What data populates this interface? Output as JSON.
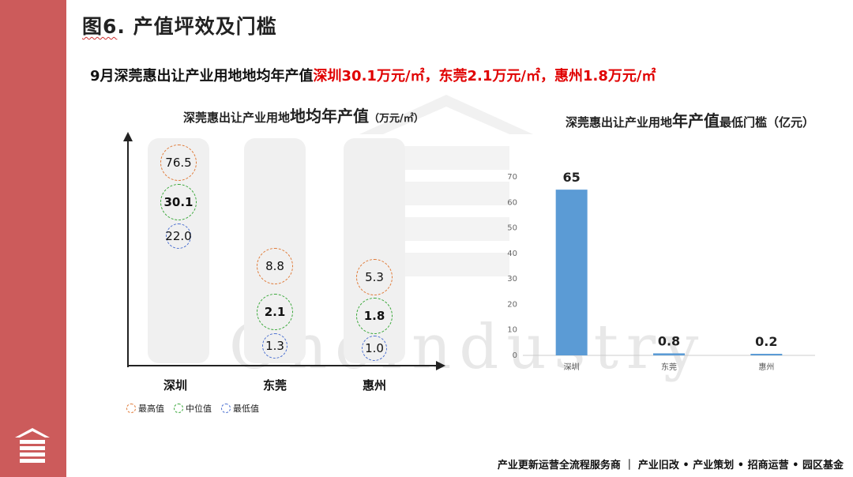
{
  "page": {
    "title": "图6. 产值坪效及门槛",
    "title_underlined": "图6",
    "title_rest": ". 产值坪效及门槛",
    "subtitle_prefix": "9月深莞惠出让产业用地地均年产值",
    "subtitle_highlight": "深圳30.1万元/㎡，东莞2.1万元/㎡，惠州1.8万元/㎡",
    "watermark": "OneIndustry",
    "footer": "产业更新运营全流程服务商 ｜ 产业旧改 • 产业策划 • 招商运营 • 园区基金",
    "colors": {
      "sidebar": "#cc5b5b",
      "highlight": "#e00000",
      "bar": "#5b9bd5"
    }
  },
  "chart_data": [
    {
      "type": "table",
      "title_prefix": "深莞惠出让产业用地",
      "title_big": "地均年产值",
      "title_unit": "（万元/㎡）",
      "categories": [
        "深圳",
        "东莞",
        "惠州"
      ],
      "series": [
        {
          "name": "最高值",
          "values": [
            "76.5",
            "8.8",
            "5.3"
          ],
          "color": "#e07b39"
        },
        {
          "name": "中位值",
          "values": [
            "30.1",
            "2.1",
            "1.8"
          ],
          "color": "#3aa83a"
        },
        {
          "name": "最低值",
          "values": [
            "22.0",
            "1.3",
            "1.0"
          ],
          "color": "#4a6fd0"
        }
      ]
    },
    {
      "type": "bar",
      "title_prefix": "深莞惠出让产业用地",
      "title_big": "年产值",
      "title_suffix": "最低门槛（亿元）",
      "categories": [
        "深圳",
        "东莞",
        "惠州"
      ],
      "values": [
        65,
        0.8,
        0.2
      ],
      "value_labels": [
        "65",
        "0.8",
        "0.2"
      ],
      "ylim": [
        0,
        70
      ],
      "yticks": [
        "0",
        "10",
        "20",
        "30",
        "40",
        "50",
        "60",
        "70"
      ],
      "color": "#5b9bd5"
    }
  ]
}
